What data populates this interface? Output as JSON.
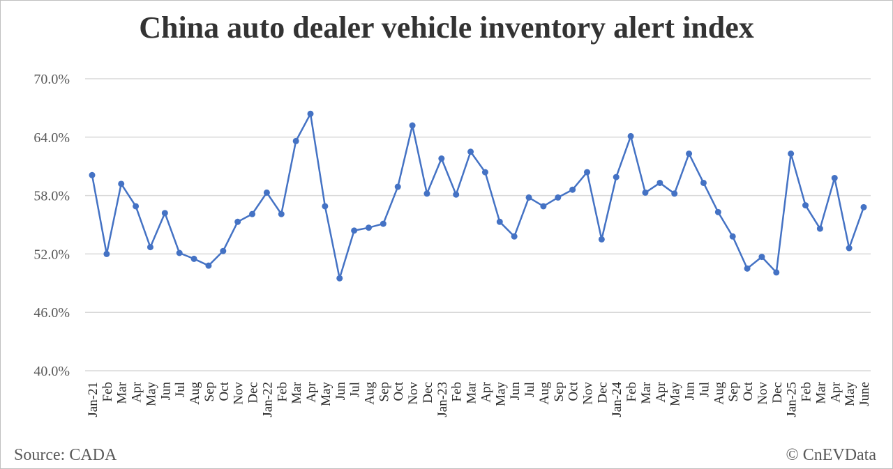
{
  "title": "China auto dealer vehicle inventory alert index",
  "source": "Source: CADA",
  "credit": "© CnEVData",
  "colors": {
    "line": "#4472c4",
    "grid": "#d9d9d9",
    "text": "#595959",
    "title": "#333333"
  },
  "chart_data": {
    "type": "line",
    "ylim": [
      40,
      70
    ],
    "yticks": [
      40,
      46,
      52,
      58,
      64,
      70
    ],
    "ytick_labels": [
      "40.0%",
      "46.0%",
      "52.0%",
      "58.0%",
      "64.0%",
      "70.0%"
    ],
    "grid": true,
    "categories": [
      "Jan-21",
      "Feb",
      "Mar",
      "Apr",
      "May",
      "Jun",
      "Jul",
      "Aug",
      "Sep",
      "Oct",
      "Nov",
      "Dec",
      "Jan-22",
      "Feb",
      "Mar",
      "Apr",
      "May",
      "Jun",
      "Jul",
      "Aug",
      "Sep",
      "Oct",
      "Nov",
      "Dec",
      "Jan-23",
      "Feb",
      "Mar",
      "Apr",
      "May",
      "Jun",
      "Jul",
      "Aug",
      "Sep",
      "Oct",
      "Nov",
      "Dec",
      "Jan-24",
      "Feb",
      "Mar",
      "Apr",
      "May",
      "Jun",
      "Jul",
      "Aug",
      "Sep",
      "Oct",
      "Nov",
      "Dec",
      "Jan-25",
      "Feb",
      "Mar",
      "Apr",
      "May",
      "June"
    ],
    "series": [
      {
        "values": [
          60.1,
          52.0,
          59.2,
          56.9,
          52.7,
          56.2,
          52.1,
          51.5,
          50.8,
          52.3,
          55.3,
          56.1,
          58.3,
          56.1,
          63.6,
          66.4,
          56.9,
          49.5,
          54.4,
          54.7,
          55.1,
          58.9,
          65.2,
          58.2,
          61.8,
          58.1,
          62.5,
          60.4,
          55.3,
          53.8,
          57.8,
          56.9,
          57.8,
          58.6,
          60.4,
          53.5,
          59.9,
          64.1,
          58.3,
          59.3,
          58.2,
          62.3,
          59.3,
          56.3,
          53.8,
          50.5,
          51.7,
          50.1,
          62.3,
          57.0,
          54.6,
          59.8,
          52.6,
          56.8
        ]
      }
    ]
  }
}
